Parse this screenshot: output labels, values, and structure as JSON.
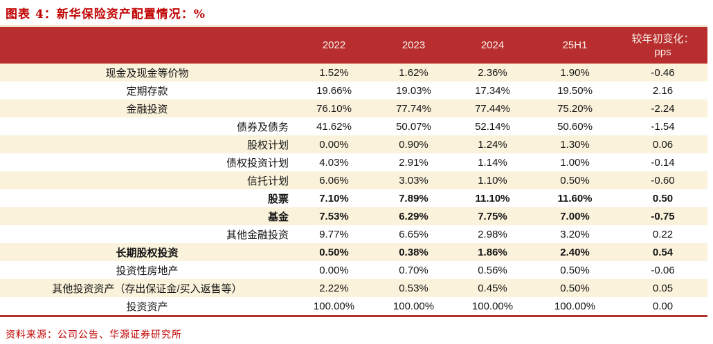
{
  "title": "图表 4：新华保险资产配置情况：%",
  "source_note": "资料来源：公司公告、华源证券研究所",
  "colors": {
    "title_red": "#c00000",
    "header_bg": "#b82e2e",
    "header_text": "#f8efe8",
    "row_alt_cream": "#fbf2db",
    "bottom_border_red": "#b03030"
  },
  "chart_data": {
    "type": "table",
    "title": "新华保险资产配置情况：%",
    "columns": [
      "",
      "2022",
      "2023",
      "2024",
      "25H1",
      "较年初变化：pps"
    ],
    "last_column_lines": [
      "较年初变化：",
      "pps"
    ],
    "rows": [
      {
        "label": "现金及现金等价物",
        "level": 1,
        "bold": false,
        "values": [
          "1.52%",
          "1.62%",
          "2.36%",
          "1.90%",
          "-0.46"
        ]
      },
      {
        "label": "定期存款",
        "level": 1,
        "bold": false,
        "values": [
          "19.66%",
          "19.03%",
          "17.34%",
          "19.50%",
          "2.16"
        ]
      },
      {
        "label": "金融投资",
        "level": 1,
        "bold": false,
        "values": [
          "76.10%",
          "77.74%",
          "77.44%",
          "75.20%",
          "-2.24"
        ]
      },
      {
        "label": "债券及债务",
        "level": 2,
        "bold": false,
        "values": [
          "41.62%",
          "50.07%",
          "52.14%",
          "50.60%",
          "-1.54"
        ]
      },
      {
        "label": "股权计划",
        "level": 2,
        "bold": false,
        "values": [
          "0.00%",
          "0.90%",
          "1.24%",
          "1.30%",
          "0.06"
        ]
      },
      {
        "label": "债权投资计划",
        "level": 2,
        "bold": false,
        "values": [
          "4.03%",
          "2.91%",
          "1.14%",
          "1.00%",
          "-0.14"
        ]
      },
      {
        "label": "信托计划",
        "level": 2,
        "bold": false,
        "values": [
          "6.06%",
          "3.03%",
          "1.10%",
          "0.50%",
          "-0.60"
        ]
      },
      {
        "label": "股票",
        "level": 2,
        "bold": true,
        "values": [
          "7.10%",
          "7.89%",
          "11.10%",
          "11.60%",
          "0.50"
        ]
      },
      {
        "label": "基金",
        "level": 2,
        "bold": true,
        "values": [
          "7.53%",
          "6.29%",
          "7.75%",
          "7.00%",
          "-0.75"
        ]
      },
      {
        "label": "其他金融投资",
        "level": 2,
        "bold": false,
        "values": [
          "9.77%",
          "6.65%",
          "2.98%",
          "3.20%",
          "0.22"
        ]
      },
      {
        "label": "长期股权投资",
        "level": 1,
        "bold": true,
        "values": [
          "0.50%",
          "0.38%",
          "1.86%",
          "2.40%",
          "0.54"
        ]
      },
      {
        "label": "投资性房地产",
        "level": 1,
        "bold": false,
        "values": [
          "0.00%",
          "0.70%",
          "0.56%",
          "0.50%",
          "-0.06"
        ]
      },
      {
        "label": "其他投资资产（存出保证金/买入返售等）",
        "level": 1,
        "bold": false,
        "values": [
          "2.22%",
          "0.53%",
          "0.45%",
          "0.50%",
          "0.05"
        ]
      },
      {
        "label": "投资资产",
        "level": 1,
        "bold": false,
        "values": [
          "100.00%",
          "100.00%",
          "100.00%",
          "100.00%",
          "0.00"
        ]
      }
    ]
  }
}
